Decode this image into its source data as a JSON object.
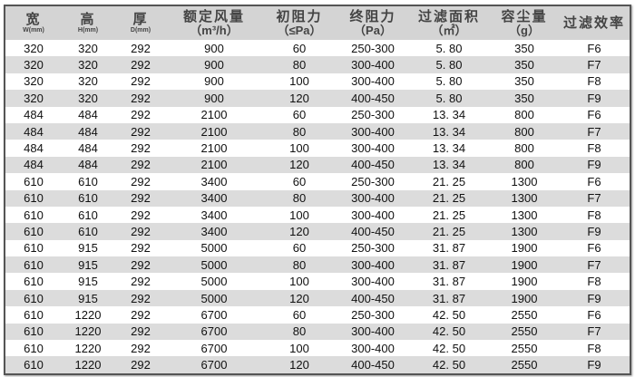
{
  "headers": [
    {
      "cn": "宽",
      "unit": "W(mm)",
      "small": true
    },
    {
      "cn": "高",
      "unit": "H(mm)",
      "small": true
    },
    {
      "cn": "厚",
      "unit": "D(mm)",
      "small": true
    },
    {
      "cn": "额定风量",
      "unit": "（m³/h）"
    },
    {
      "cn": "初阻力",
      "unit": "（≤Pa）"
    },
    {
      "cn": "终阻力",
      "unit": "（Pa）"
    },
    {
      "cn": "过滤面积",
      "unit": "（㎡）"
    },
    {
      "cn": "容尘量",
      "unit": "（g）"
    },
    {
      "cn": "过滤效率",
      "unit": ""
    }
  ],
  "rows": [
    [
      "320",
      "320",
      "292",
      "900",
      "60",
      "250-300",
      "5. 80",
      "350",
      "F6"
    ],
    [
      "320",
      "320",
      "292",
      "900",
      "80",
      "300-400",
      "5. 80",
      "350",
      "F7"
    ],
    [
      "320",
      "320",
      "292",
      "900",
      "100",
      "300-400",
      "5. 80",
      "350",
      "F8"
    ],
    [
      "320",
      "320",
      "292",
      "900",
      "120",
      "400-450",
      "5. 80",
      "350",
      "F9"
    ],
    [
      "484",
      "484",
      "292",
      "2100",
      "60",
      "250-300",
      "13. 34",
      "800",
      "F6"
    ],
    [
      "484",
      "484",
      "292",
      "2100",
      "80",
      "300-400",
      "13. 34",
      "800",
      "F7"
    ],
    [
      "484",
      "484",
      "292",
      "2100",
      "100",
      "300-400",
      "13. 34",
      "800",
      "F8"
    ],
    [
      "484",
      "484",
      "292",
      "2100",
      "120",
      "400-450",
      "13. 34",
      "800",
      "F9"
    ],
    [
      "610",
      "610",
      "292",
      "3400",
      "60",
      "250-300",
      "21. 25",
      "1300",
      "F6"
    ],
    [
      "610",
      "610",
      "292",
      "3400",
      "80",
      "300-400",
      "21. 25",
      "1300",
      "F7"
    ],
    [
      "610",
      "610",
      "292",
      "3400",
      "100",
      "300-400",
      "21. 25",
      "1300",
      "F8"
    ],
    [
      "610",
      "610",
      "292",
      "3400",
      "120",
      "400-450",
      "21. 25",
      "1300",
      "F9"
    ],
    [
      "610",
      "915",
      "292",
      "5000",
      "60",
      "250-300",
      "31. 87",
      "1900",
      "F6"
    ],
    [
      "610",
      "915",
      "292",
      "5000",
      "80",
      "300-400",
      "31. 87",
      "1900",
      "F7"
    ],
    [
      "610",
      "915",
      "292",
      "5000",
      "100",
      "300-400",
      "31. 87",
      "1900",
      "F8"
    ],
    [
      "610",
      "915",
      "292",
      "5000",
      "120",
      "400-450",
      "31. 87",
      "1900",
      "F9"
    ],
    [
      "610",
      "1220",
      "292",
      "6700",
      "60",
      "250-300",
      "42. 50",
      "2550",
      "F6"
    ],
    [
      "610",
      "1220",
      "292",
      "6700",
      "80",
      "300-400",
      "42. 50",
      "2550",
      "F7"
    ],
    [
      "610",
      "1220",
      "292",
      "6700",
      "100",
      "300-400",
      "42. 50",
      "2550",
      "F8"
    ],
    [
      "610",
      "1220",
      "292",
      "6700",
      "120",
      "400-450",
      "42. 50",
      "2550",
      "F9"
    ]
  ]
}
